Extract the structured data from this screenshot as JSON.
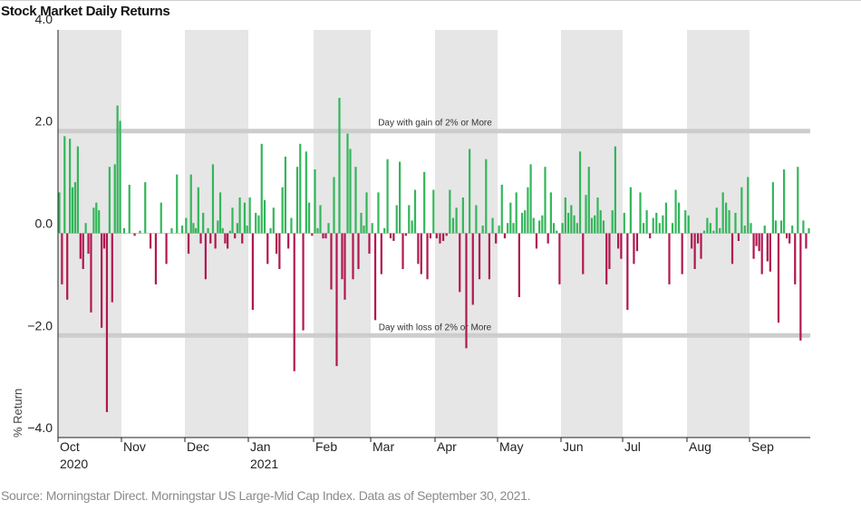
{
  "title": "Stock Market Daily Returns",
  "source": "Source: Morningstar Direct. Morningstar US Large-Mid Cap Index. Data as of September 30, 2021.",
  "colors": {
    "gain": "#33b65a",
    "loss": "#b0174f",
    "band": "#e6e6e6",
    "threshold": "#cdcdcd",
    "axis": "#222222"
  },
  "chart_data": {
    "type": "bar",
    "title": "Stock Market Daily Returns",
    "xlabel": "",
    "ylabel": "% Return",
    "ylim": [
      -4.0,
      4.0
    ],
    "yticks": [
      "4.0",
      "2.0",
      "0.0",
      "−2.0",
      "−4.0"
    ],
    "ytick_values": [
      4,
      2,
      0,
      -2,
      -4
    ],
    "months": [
      {
        "label": "Oct",
        "year": "2020",
        "shaded": true
      },
      {
        "label": "Nov",
        "year": "",
        "shaded": false
      },
      {
        "label": "Dec",
        "year": "",
        "shaded": true
      },
      {
        "label": "Jan",
        "year": "2021",
        "shaded": false
      },
      {
        "label": "Feb",
        "year": "",
        "shaded": true
      },
      {
        "label": "Mar",
        "year": "",
        "shaded": false
      },
      {
        "label": "Apr",
        "year": "",
        "shaded": true
      },
      {
        "label": "May",
        "year": "",
        "shaded": false
      },
      {
        "label": "Jun",
        "year": "",
        "shaded": true
      },
      {
        "label": "Jul",
        "year": "",
        "shaded": false
      },
      {
        "label": "Aug",
        "year": "",
        "shaded": true
      },
      {
        "label": "Sep",
        "year": "",
        "shaded": false
      }
    ],
    "thresholds": [
      {
        "value": 2.0,
        "label": "Day with gain of 2% or More"
      },
      {
        "value": -2.0,
        "label": "Day with loss of 2% or More"
      }
    ],
    "values": [
      0.8,
      -1.0,
      1.9,
      -1.3,
      1.85,
      0.9,
      1.0,
      1.7,
      -0.5,
      -0.7,
      0.2,
      -0.4,
      -1.55,
      0.5,
      0.6,
      0.45,
      -1.85,
      -0.3,
      -3.5,
      1.3,
      -1.35,
      1.35,
      2.5,
      2.2,
      0.1,
      0.95,
      -0.05,
      0.05,
      1.0,
      -0.3,
      -1.0,
      0.6,
      -0.6,
      0.1,
      1.15,
      0.15,
      0.3,
      -0.4,
      1.15,
      0.2,
      0.1,
      0.9,
      -0.2,
      0.4,
      -0.9,
      0.1,
      -0.2,
      1.35,
      -0.3,
      0.25,
      0.8,
      0.1,
      -0.2,
      -0.3,
      0.05,
      0.5,
      -0.1,
      0.2,
      0.7,
      -0.2,
      0.6,
      0.15,
      0.7,
      -1.5,
      0.4,
      0.35,
      1.75,
      0.65,
      -0.6,
      0.1,
      0.5,
      -0.4,
      -0.7,
      0.9,
      1.5,
      -0.3,
      0.3,
      -2.7,
      1.3,
      1.75,
      -1.9,
      1.6,
      0.6,
      -0.05,
      1.25,
      0.1,
      0.55,
      -0.1,
      -0.1,
      0.2,
      -1.1,
      1.1,
      -2.6,
      2.65,
      -0.9,
      -1.3,
      1.95,
      1.65,
      -0.9,
      1.3,
      -0.7,
      0.4,
      0.15,
      0.8,
      -0.4,
      0.2,
      -1.7,
      0.8,
      -0.8,
      0.1,
      1.45,
      -0.1,
      -0.15,
      0.55,
      1.4,
      -0.7,
      -0.05,
      0.55,
      0.25,
      0.85,
      -0.6,
      -0.8,
      1.2,
      -0.9,
      -0.1,
      0.85,
      -0.1,
      -0.2,
      -0.15,
      -0.05,
      0.85,
      0.3,
      0.5,
      -1.15,
      0.7,
      -2.25,
      1.65,
      -1.4,
      0.55,
      -0.9,
      0.15,
      1.45,
      -0.9,
      0.3,
      -0.2,
      0.15,
      0.95,
      -0.1,
      0.2,
      0.6,
      0.2,
      0.8,
      -1.25,
      0.4,
      0.45,
      0.9,
      1.35,
      0.3,
      -0.3,
      0.25,
      0.35,
      1.3,
      -0.2,
      0.8,
      0.2,
      0.05,
      -1.0,
      0.2,
      0.7,
      0.4,
      0.55,
      0.35,
      0.2,
      1.6,
      -0.8,
      0.75,
      1.3,
      0.3,
      0.35,
      0.7,
      0.45,
      0.25,
      -1.0,
      -0.7,
      0.45,
      1.7,
      -0.3,
      -0.5,
      0.4,
      -1.5,
      0.9,
      -0.6,
      -0.35,
      0.8,
      0.2,
      0.45,
      -0.1,
      0.3,
      0.4,
      0.2,
      0.35,
      0.6,
      -1.0,
      0.2,
      0.85,
      0.6,
      -0.8,
      0.45,
      0.35,
      -0.3,
      -0.7,
      -0.2,
      -0.5,
      0.05,
      0.3,
      0.2,
      0.05,
      0.5,
      0.1,
      0.8,
      0.6,
      0.45,
      -0.6,
      0.4,
      -0.15,
      0.9,
      0.15,
      1.1,
      0.2,
      -0.5,
      -0.25,
      -0.35,
      -0.8,
      0.15,
      -0.55,
      -0.75,
      1.0,
      0.25,
      -1.75,
      0.25,
      1.25,
      -0.1,
      -0.2,
      0.15,
      -1.0,
      1.3,
      -2.1,
      0.25,
      -0.3,
      0.1
    ],
    "month_trading_days": [
      24,
      12,
      26,
      22,
      21,
      21,
      19,
      22,
      21,
      20,
      20,
      22
    ]
  }
}
